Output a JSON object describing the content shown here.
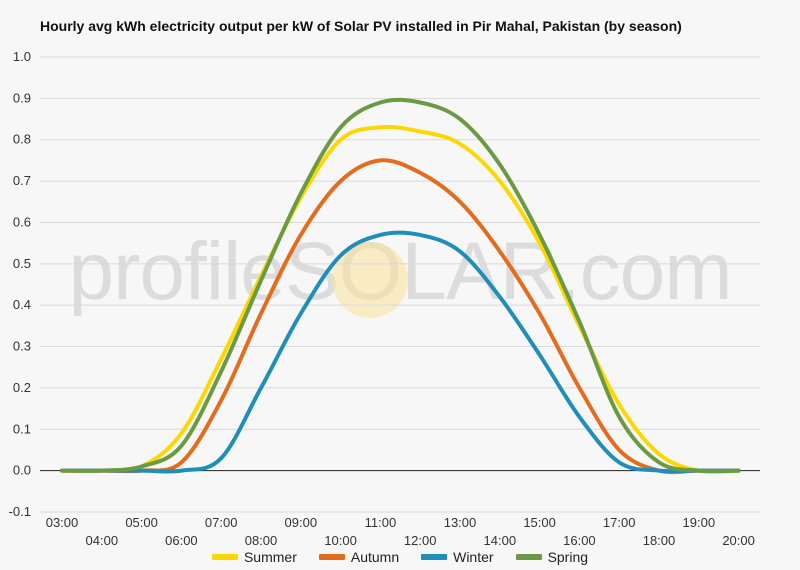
{
  "chart_data": {
    "type": "line",
    "title": "Hourly avg kWh electricity output per kW of Solar PV installed in Pir Mahal, Pakistan (by season)",
    "xlabel": "",
    "ylabel": "",
    "ylim": [
      -0.1,
      1.0
    ],
    "yticks": [
      "1.0",
      "0.9",
      "0.8",
      "0.7",
      "0.6",
      "0.5",
      "0.4",
      "0.3",
      "0.2",
      "0.1",
      "0.0",
      "-0.1"
    ],
    "x": [
      "03:00",
      "04:00",
      "05:00",
      "06:00",
      "07:00",
      "08:00",
      "09:00",
      "10:00",
      "11:00",
      "12:00",
      "13:00",
      "14:00",
      "15:00",
      "16:00",
      "17:00",
      "18:00",
      "19:00",
      "20:00"
    ],
    "grid": true,
    "legend_position": "bottom",
    "series": [
      {
        "name": "Summer",
        "color": "#ffd700",
        "values": [
          0.0,
          0.0,
          0.01,
          0.09,
          0.27,
          0.47,
          0.66,
          0.8,
          0.83,
          0.82,
          0.79,
          0.7,
          0.55,
          0.35,
          0.16,
          0.04,
          0.0,
          0.0
        ]
      },
      {
        "name": "Autumn",
        "color": "#e36c1f",
        "values": [
          0.0,
          0.0,
          0.0,
          0.02,
          0.17,
          0.38,
          0.57,
          0.7,
          0.75,
          0.72,
          0.65,
          0.53,
          0.38,
          0.2,
          0.05,
          0.0,
          0.0,
          0.0
        ]
      },
      {
        "name": "Winter",
        "color": "#1f8fb8",
        "values": [
          0.0,
          0.0,
          0.0,
          0.0,
          0.03,
          0.2,
          0.38,
          0.52,
          0.57,
          0.57,
          0.53,
          0.42,
          0.28,
          0.13,
          0.02,
          0.0,
          0.0,
          0.0
        ]
      },
      {
        "name": "Spring",
        "color": "#6b9a45",
        "values": [
          0.0,
          0.0,
          0.01,
          0.06,
          0.24,
          0.46,
          0.67,
          0.83,
          0.89,
          0.89,
          0.85,
          0.74,
          0.57,
          0.36,
          0.13,
          0.02,
          0.0,
          0.0
        ]
      }
    ]
  },
  "watermark": "profileSOLAR.com"
}
